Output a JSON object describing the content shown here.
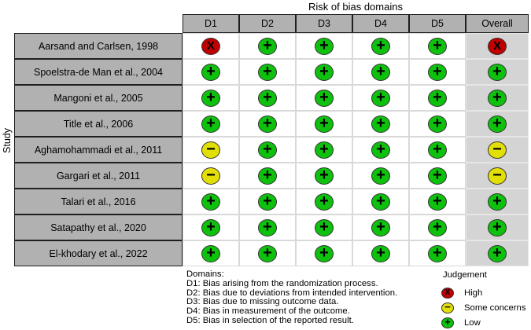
{
  "chart_data": {
    "type": "heatmap",
    "title": "Risk of bias domains",
    "ylabel": "Study",
    "columns": [
      "D1",
      "D2",
      "D3",
      "D4",
      "D5",
      "Overall"
    ],
    "studies": [
      "Aarsand and Carlsen, 1998",
      "Spoelstra-de Man et al., 2004",
      "Mangoni et al., 2005",
      "Title et al., 2006",
      "Aghamohammadi et al., 2011",
      "Gargari et al., 2011",
      "Talari et al., 2016",
      "Satapathy et al., 2020",
      "El-khodary et al., 2022"
    ],
    "judgements": [
      [
        "high",
        "low",
        "low",
        "low",
        "low",
        "high"
      ],
      [
        "low",
        "low",
        "low",
        "low",
        "low",
        "low"
      ],
      [
        "low",
        "low",
        "low",
        "low",
        "low",
        "low"
      ],
      [
        "low",
        "low",
        "low",
        "low",
        "low",
        "low"
      ],
      [
        "some_concerns",
        "low",
        "low",
        "low",
        "low",
        "some_concerns"
      ],
      [
        "some_concerns",
        "low",
        "low",
        "low",
        "low",
        "some_concerns"
      ],
      [
        "low",
        "low",
        "low",
        "low",
        "low",
        "low"
      ],
      [
        "low",
        "low",
        "low",
        "low",
        "low",
        "low"
      ],
      [
        "low",
        "low",
        "low",
        "low",
        "low",
        "low"
      ]
    ],
    "legend_title": "Judgement",
    "legend": [
      {
        "judgement": "high",
        "label": "High",
        "symbol": "X",
        "color": "#c00000"
      },
      {
        "judgement": "some_concerns",
        "label": "Some concerns",
        "symbol": "−",
        "color": "#e2df07"
      },
      {
        "judgement": "low",
        "label": "Low",
        "symbol": "+",
        "color": "#0dc10d"
      }
    ],
    "footnote_heading": "Domains:",
    "footnotes": [
      "D1: Bias arising from the randomization process.",
      "D2: Bias due to deviations from intended intervention.",
      "D3: Bias due to missing outcome data.",
      "D4: Bias in measurement of the outcome.",
      "D5: Bias in selection of the reported result."
    ]
  },
  "styles": {
    "header_bg": "#b1b1b1",
    "overall_column_bg": "#d4d4d4"
  }
}
